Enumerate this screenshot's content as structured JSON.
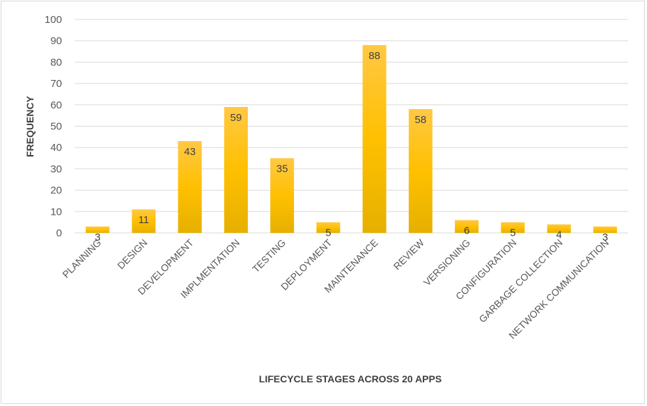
{
  "chart_data": {
    "type": "bar",
    "title": "",
    "xlabel": "LIFECYCLE STAGES ACROSS 20 APPS",
    "ylabel": "FREQUENCY",
    "ylim": [
      0,
      100
    ],
    "yticks": [
      0,
      10,
      20,
      30,
      40,
      50,
      60,
      70,
      80,
      90,
      100
    ],
    "grid": true,
    "legend": "none",
    "categories": [
      "PLANNING",
      "DESIGN",
      "DEVELOPMENT",
      "IMPLMENTATION",
      "TESTING",
      "DEPLOYMENT",
      "MAINTENANCE",
      "REVIEW",
      "VERSIONING",
      "CONFIGURATION",
      "GARBAGE COLLECTION",
      "NETWORK COMMUNICATION"
    ],
    "values": [
      3,
      11,
      43,
      59,
      35,
      5,
      88,
      58,
      6,
      5,
      4,
      3
    ],
    "data_labels": [
      "3",
      "11",
      "43",
      "59",
      "35",
      "5",
      "88",
      "58",
      "6",
      "5",
      "4",
      "3"
    ],
    "colors": {
      "bar_top": "#ffc845",
      "bar_mid": "#ffc000",
      "bar_bottom": "#e6b000",
      "grid": "#d9d9d9"
    }
  }
}
